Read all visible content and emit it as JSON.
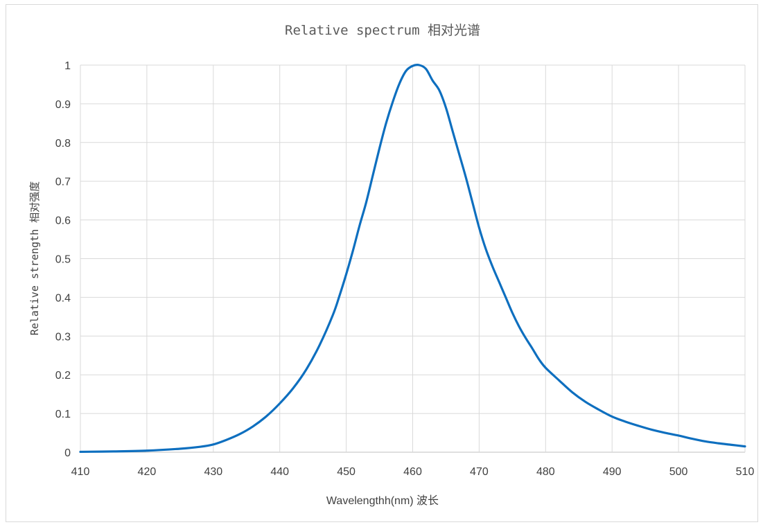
{
  "chart_data": {
    "type": "line",
    "title": "Relative spectrum 相对光谱",
    "xlabel": "Wavelengthh(nm) 波长",
    "ylabel": "Relative  strength   相对强度",
    "xlim": [
      410,
      510
    ],
    "ylim": [
      0,
      1
    ],
    "x_ticks": [
      410,
      420,
      430,
      440,
      450,
      460,
      470,
      480,
      490,
      500,
      510
    ],
    "y_ticks": [
      "0",
      "0.1",
      "0.2",
      "0.3",
      "0.4",
      "0.5",
      "0.6",
      "0.7",
      "0.8",
      "0.9",
      "1"
    ],
    "grid": "vertical and horizontal",
    "legend": "none",
    "series": [
      {
        "color": "#0e6fbf",
        "x": [
          410,
          415,
          420,
          425,
          428,
          430,
          432,
          434,
          436,
          438,
          440,
          442,
          444,
          446,
          448,
          449,
          450,
          451,
          452,
          453,
          454,
          455,
          456,
          457,
          458,
          459,
          460,
          461,
          462,
          463,
          464,
          465,
          466,
          467,
          468,
          469,
          470,
          471,
          472,
          473,
          474,
          475,
          476,
          477,
          478,
          479,
          480,
          482,
          484,
          486,
          488,
          490,
          492,
          494,
          496,
          498,
          500,
          502,
          504,
          506,
          508,
          510
        ],
        "y": [
          0.001,
          0.002,
          0.004,
          0.009,
          0.014,
          0.02,
          0.032,
          0.047,
          0.067,
          0.093,
          0.126,
          0.165,
          0.214,
          0.277,
          0.355,
          0.405,
          0.46,
          0.52,
          0.585,
          0.645,
          0.715,
          0.785,
          0.85,
          0.905,
          0.952,
          0.985,
          0.998,
          1.0,
          0.99,
          0.96,
          0.935,
          0.89,
          0.83,
          0.77,
          0.71,
          0.645,
          0.58,
          0.525,
          0.48,
          0.44,
          0.4,
          0.36,
          0.325,
          0.295,
          0.268,
          0.24,
          0.218,
          0.186,
          0.155,
          0.13,
          0.11,
          0.092,
          0.079,
          0.068,
          0.058,
          0.05,
          0.043,
          0.035,
          0.028,
          0.023,
          0.019,
          0.015
        ]
      }
    ]
  }
}
